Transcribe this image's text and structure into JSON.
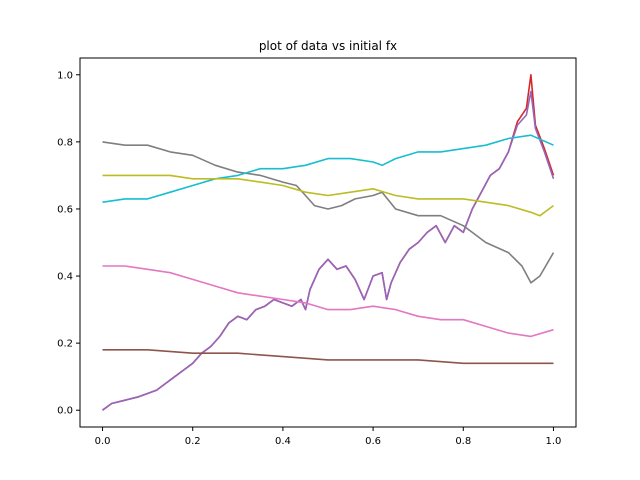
{
  "chart_data": {
    "type": "line",
    "title": "plot of data vs initial fx",
    "xlabel": "",
    "ylabel": "",
    "xlim": [
      -0.05,
      1.05
    ],
    "ylim": [
      -0.05,
      1.05
    ],
    "xticks": [
      "0.0",
      "0.2",
      "0.4",
      "0.6",
      "0.8",
      "1.0"
    ],
    "yticks": [
      "0.0",
      "0.2",
      "0.4",
      "0.6",
      "0.8",
      "1.0"
    ],
    "grid": false,
    "legend": "none",
    "series": [
      {
        "color": "#d62728",
        "x": [
          0,
          0.02,
          0.05,
          0.08,
          0.1,
          0.12,
          0.14,
          0.16,
          0.18,
          0.2,
          0.22,
          0.24,
          0.26,
          0.28,
          0.3,
          0.32,
          0.34,
          0.36,
          0.38,
          0.4,
          0.42,
          0.44,
          0.45,
          0.46,
          0.48,
          0.5,
          0.52,
          0.54,
          0.56,
          0.58,
          0.6,
          0.62,
          0.63,
          0.64,
          0.66,
          0.68,
          0.7,
          0.72,
          0.74,
          0.76,
          0.78,
          0.8,
          0.82,
          0.84,
          0.86,
          0.88,
          0.9,
          0.92,
          0.94,
          0.95,
          0.96,
          0.98,
          1.0
        ],
        "y": [
          0.0,
          0.02,
          0.03,
          0.04,
          0.05,
          0.06,
          0.08,
          0.1,
          0.12,
          0.14,
          0.17,
          0.19,
          0.22,
          0.26,
          0.28,
          0.27,
          0.3,
          0.31,
          0.33,
          0.32,
          0.31,
          0.33,
          0.3,
          0.36,
          0.42,
          0.45,
          0.42,
          0.43,
          0.39,
          0.33,
          0.4,
          0.41,
          0.33,
          0.38,
          0.44,
          0.48,
          0.5,
          0.53,
          0.55,
          0.5,
          0.55,
          0.53,
          0.6,
          0.65,
          0.7,
          0.72,
          0.77,
          0.86,
          0.9,
          1.0,
          0.85,
          0.78,
          0.7
        ]
      },
      {
        "color": "#9467bd",
        "x": [
          0,
          0.02,
          0.05,
          0.08,
          0.1,
          0.12,
          0.14,
          0.16,
          0.18,
          0.2,
          0.22,
          0.24,
          0.26,
          0.28,
          0.3,
          0.32,
          0.34,
          0.36,
          0.38,
          0.4,
          0.42,
          0.44,
          0.45,
          0.46,
          0.48,
          0.5,
          0.52,
          0.54,
          0.56,
          0.58,
          0.6,
          0.62,
          0.63,
          0.64,
          0.66,
          0.68,
          0.7,
          0.72,
          0.74,
          0.76,
          0.78,
          0.8,
          0.82,
          0.84,
          0.86,
          0.88,
          0.9,
          0.92,
          0.94,
          0.95,
          0.96,
          0.98,
          1.0
        ],
        "y": [
          0.0,
          0.02,
          0.03,
          0.04,
          0.05,
          0.06,
          0.08,
          0.1,
          0.12,
          0.14,
          0.17,
          0.19,
          0.22,
          0.26,
          0.28,
          0.27,
          0.3,
          0.31,
          0.33,
          0.32,
          0.31,
          0.33,
          0.3,
          0.36,
          0.42,
          0.45,
          0.42,
          0.43,
          0.39,
          0.33,
          0.4,
          0.41,
          0.33,
          0.38,
          0.44,
          0.48,
          0.5,
          0.53,
          0.55,
          0.5,
          0.55,
          0.53,
          0.6,
          0.65,
          0.7,
          0.72,
          0.77,
          0.85,
          0.88,
          0.95,
          0.84,
          0.77,
          0.69
        ]
      },
      {
        "color": "#7f7f7f",
        "x": [
          0,
          0.05,
          0.1,
          0.15,
          0.2,
          0.25,
          0.3,
          0.35,
          0.4,
          0.43,
          0.45,
          0.47,
          0.5,
          0.53,
          0.56,
          0.6,
          0.62,
          0.65,
          0.7,
          0.75,
          0.8,
          0.82,
          0.85,
          0.9,
          0.93,
          0.95,
          0.97,
          1.0
        ],
        "y": [
          0.8,
          0.79,
          0.79,
          0.77,
          0.76,
          0.73,
          0.71,
          0.7,
          0.68,
          0.67,
          0.64,
          0.61,
          0.6,
          0.61,
          0.63,
          0.64,
          0.65,
          0.6,
          0.58,
          0.58,
          0.55,
          0.53,
          0.5,
          0.47,
          0.43,
          0.38,
          0.4,
          0.47
        ]
      },
      {
        "color": "#17becf",
        "x": [
          0,
          0.05,
          0.1,
          0.15,
          0.2,
          0.25,
          0.3,
          0.35,
          0.4,
          0.45,
          0.5,
          0.55,
          0.6,
          0.62,
          0.65,
          0.7,
          0.75,
          0.8,
          0.85,
          0.9,
          0.95,
          1.0
        ],
        "y": [
          0.62,
          0.63,
          0.63,
          0.65,
          0.67,
          0.69,
          0.7,
          0.72,
          0.72,
          0.73,
          0.75,
          0.75,
          0.74,
          0.73,
          0.75,
          0.77,
          0.77,
          0.78,
          0.79,
          0.81,
          0.82,
          0.79
        ]
      },
      {
        "color": "#bcbd22",
        "x": [
          0,
          0.05,
          0.1,
          0.15,
          0.2,
          0.25,
          0.3,
          0.35,
          0.4,
          0.45,
          0.5,
          0.55,
          0.6,
          0.65,
          0.7,
          0.75,
          0.8,
          0.85,
          0.9,
          0.95,
          0.97,
          1.0
        ],
        "y": [
          0.7,
          0.7,
          0.7,
          0.7,
          0.69,
          0.69,
          0.69,
          0.68,
          0.67,
          0.65,
          0.64,
          0.65,
          0.66,
          0.64,
          0.63,
          0.63,
          0.63,
          0.62,
          0.61,
          0.59,
          0.58,
          0.61
        ]
      },
      {
        "color": "#e377c2",
        "x": [
          0,
          0.05,
          0.1,
          0.15,
          0.2,
          0.25,
          0.3,
          0.35,
          0.4,
          0.45,
          0.5,
          0.55,
          0.6,
          0.65,
          0.7,
          0.75,
          0.8,
          0.85,
          0.9,
          0.95,
          1.0
        ],
        "y": [
          0.43,
          0.43,
          0.42,
          0.41,
          0.39,
          0.37,
          0.35,
          0.34,
          0.33,
          0.32,
          0.3,
          0.3,
          0.31,
          0.3,
          0.28,
          0.27,
          0.27,
          0.25,
          0.23,
          0.22,
          0.24
        ]
      },
      {
        "color": "#8c564b",
        "x": [
          0,
          0.1,
          0.2,
          0.3,
          0.4,
          0.5,
          0.6,
          0.7,
          0.8,
          0.9,
          1.0
        ],
        "y": [
          0.18,
          0.18,
          0.17,
          0.17,
          0.16,
          0.15,
          0.15,
          0.15,
          0.14,
          0.14,
          0.14
        ]
      }
    ]
  }
}
